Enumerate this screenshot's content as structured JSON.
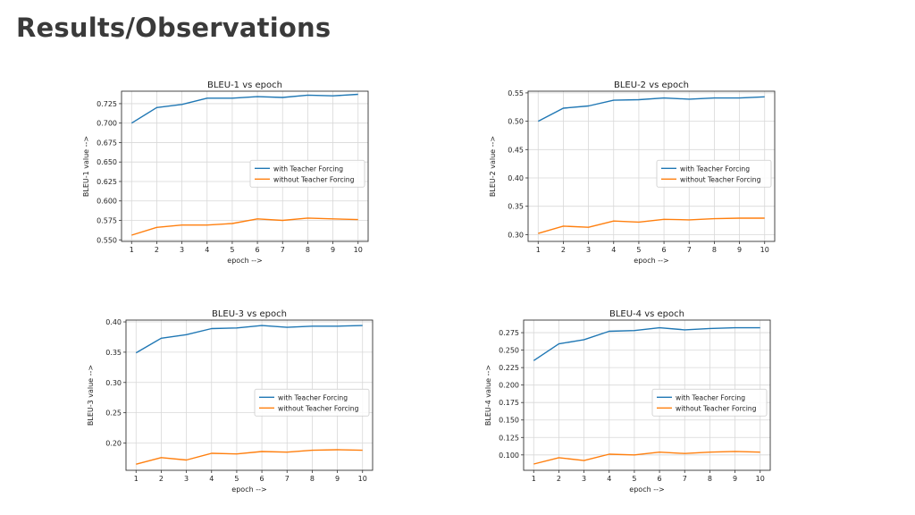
{
  "page": {
    "title": "Results/Observations"
  },
  "chart_data": [
    {
      "type": "line",
      "title": "BLEU-1 vs epoch",
      "xlabel": "epoch -->",
      "ylabel": "BLEU-1 value -->",
      "x": [
        1,
        2,
        3,
        4,
        5,
        6,
        7,
        8,
        9,
        10
      ],
      "xlim": [
        0.6,
        10.4
      ],
      "ylim": [
        0.548,
        0.741
      ],
      "yticks": [
        0.55,
        0.575,
        0.6,
        0.625,
        0.65,
        0.675,
        0.7,
        0.725
      ],
      "ytick_labels": [
        "0.550",
        "0.575",
        "0.600",
        "0.625",
        "0.650",
        "0.675",
        "0.700",
        "0.725"
      ],
      "grid": true,
      "legend_position": "center-right",
      "series": [
        {
          "name": "with Teacher Forcing",
          "color": "#1f77b4",
          "values": [
            0.7,
            0.72,
            0.724,
            0.732,
            0.732,
            0.734,
            0.733,
            0.736,
            0.735,
            0.737
          ]
        },
        {
          "name": "without Teacher Forcing",
          "color": "#ff7f0e",
          "values": [
            0.556,
            0.566,
            0.569,
            0.569,
            0.571,
            0.577,
            0.575,
            0.578,
            0.577,
            0.576
          ]
        }
      ]
    },
    {
      "type": "line",
      "title": "BLEU-2 vs epoch",
      "xlabel": "epoch -->",
      "ylabel": "BLEU-2 value -->",
      "x": [
        1,
        2,
        3,
        4,
        5,
        6,
        7,
        8,
        9,
        10
      ],
      "xlim": [
        0.6,
        10.4
      ],
      "ylim": [
        0.288,
        0.553
      ],
      "yticks": [
        0.3,
        0.35,
        0.4,
        0.45,
        0.5,
        0.55
      ],
      "ytick_labels": [
        "0.30",
        "0.35",
        "0.40",
        "0.45",
        "0.50",
        "0.55"
      ],
      "grid": true,
      "legend_position": "center-right",
      "series": [
        {
          "name": "with Teacher Forcing",
          "color": "#1f77b4",
          "values": [
            0.5,
            0.523,
            0.527,
            0.537,
            0.538,
            0.541,
            0.539,
            0.541,
            0.541,
            0.543
          ]
        },
        {
          "name": "without Teacher Forcing",
          "color": "#ff7f0e",
          "values": [
            0.302,
            0.315,
            0.313,
            0.324,
            0.322,
            0.327,
            0.326,
            0.328,
            0.329,
            0.329
          ]
        }
      ]
    },
    {
      "type": "line",
      "title": "BLEU-3 vs epoch",
      "xlabel": "epoch -->",
      "ylabel": "BLEU-3 value -->",
      "x": [
        1,
        2,
        3,
        4,
        5,
        6,
        7,
        8,
        9,
        10
      ],
      "xlim": [
        0.6,
        10.4
      ],
      "ylim": [
        0.155,
        0.403
      ],
      "yticks": [
        0.2,
        0.25,
        0.3,
        0.35,
        0.4
      ],
      "ytick_labels": [
        "0.20",
        "0.25",
        "0.30",
        "0.35",
        "0.40"
      ],
      "grid": true,
      "legend_position": "center-right",
      "series": [
        {
          "name": "with Teacher Forcing",
          "color": "#1f77b4",
          "values": [
            0.349,
            0.373,
            0.379,
            0.389,
            0.39,
            0.394,
            0.391,
            0.393,
            0.393,
            0.394
          ]
        },
        {
          "name": "without Teacher Forcing",
          "color": "#ff7f0e",
          "values": [
            0.165,
            0.176,
            0.172,
            0.183,
            0.182,
            0.186,
            0.185,
            0.188,
            0.189,
            0.188
          ]
        }
      ]
    },
    {
      "type": "line",
      "title": "BLEU-4 vs epoch",
      "xlabel": "epoch -->",
      "ylabel": "BLEU-4 value -->",
      "x": [
        1,
        2,
        3,
        4,
        5,
        6,
        7,
        8,
        9,
        10
      ],
      "xlim": [
        0.6,
        10.4
      ],
      "ylim": [
        0.078,
        0.293
      ],
      "yticks": [
        0.1,
        0.125,
        0.15,
        0.175,
        0.2,
        0.225,
        0.25,
        0.275
      ],
      "ytick_labels": [
        "0.100",
        "0.125",
        "0.150",
        "0.175",
        "0.200",
        "0.225",
        "0.250",
        "0.275"
      ],
      "grid": true,
      "legend_position": "center-right",
      "series": [
        {
          "name": "with Teacher Forcing",
          "color": "#1f77b4",
          "values": [
            0.235,
            0.259,
            0.265,
            0.277,
            0.278,
            0.282,
            0.279,
            0.281,
            0.282,
            0.282
          ]
        },
        {
          "name": "without Teacher Forcing",
          "color": "#ff7f0e",
          "values": [
            0.087,
            0.096,
            0.092,
            0.101,
            0.1,
            0.104,
            0.102,
            0.104,
            0.105,
            0.104
          ]
        }
      ]
    }
  ]
}
